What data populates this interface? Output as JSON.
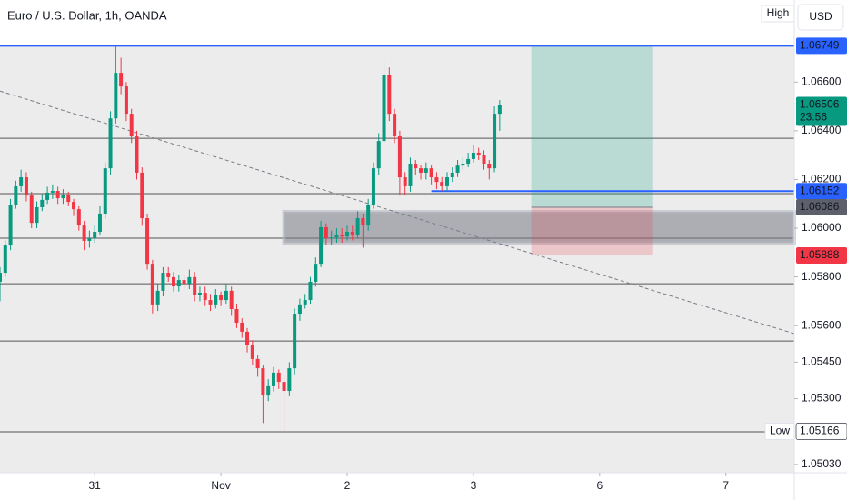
{
  "chart_data": {
    "type": "candlestick",
    "title": "Euro / U.S. Dollar, 1h, OANDA",
    "currency": "USD",
    "high_marker": "High",
    "xlim": [
      0,
      151
    ],
    "xticks": [
      {
        "value": 18,
        "label": "31"
      },
      {
        "value": 42,
        "label": "Nov"
      },
      {
        "value": 66,
        "label": "2"
      },
      {
        "value": 90,
        "label": "3"
      },
      {
        "value": 114,
        "label": "6"
      },
      {
        "value": 138,
        "label": "7"
      }
    ],
    "ylim": [
      1.04996,
      1.06937
    ],
    "yticks": [
      {
        "value": 1.066,
        "label": "1.06600"
      },
      {
        "value": 1.064,
        "label": "1.06400"
      },
      {
        "value": 1.062,
        "label": "1.06200"
      },
      {
        "value": 1.06,
        "label": "1.06000"
      },
      {
        "value": 1.058,
        "label": "1.05800"
      },
      {
        "value": 1.056,
        "label": "1.05600"
      },
      {
        "value": 1.0545,
        "label": "1.05450"
      },
      {
        "value": 1.053,
        "label": "1.05300"
      },
      {
        "value": 1.0503,
        "label": "1.05030"
      }
    ],
    "up_color": "#089981",
    "down_color": "#f23645",
    "open": [
      1.0578,
      1.05817,
      1.05929,
      1.06097,
      1.06172,
      1.06209,
      1.06134,
      1.06022,
      1.06086,
      1.06116,
      1.06146,
      1.06153,
      1.06123,
      1.06138,
      1.06108,
      1.06078,
      1.06011,
      1.05948,
      1.05959,
      1.05985,
      1.0606,
      1.06246,
      1.06451,
      1.06638,
      1.06582,
      1.0647,
      1.06377,
      1.06228,
      1.06041,
      1.05854,
      1.05687,
      1.05743,
      1.05817,
      1.05799,
      1.05761,
      1.05787,
      1.05772,
      1.05799,
      1.05724,
      1.05735,
      1.05705,
      1.05687,
      1.05724,
      1.05705,
      1.05743,
      1.05668,
      1.05612,
      1.05575,
      1.05519,
      1.05463,
      1.05425,
      1.05313,
      1.05351,
      1.05407,
      1.05369,
      1.05332,
      1.05425,
      1.05649,
      1.05687,
      1.05705,
      1.0578,
      1.05854,
      1.06004,
      1.05959,
      1.05962,
      1.05974,
      1.05966,
      1.05985,
      1.05974,
      1.06041,
      1.06011,
      1.06097,
      1.06246,
      1.06358,
      1.06631,
      1.0647,
      1.06377,
      1.06209,
      1.06172,
      1.06265,
      1.06246,
      1.06228,
      1.06246,
      1.06209,
      1.0619,
      1.06172,
      1.06209,
      1.06228,
      1.06257,
      1.06265,
      1.06284,
      1.0631,
      1.06302,
      1.06265,
      1.06246,
      1.0647
    ],
    "high": [
      1.0584,
      1.0595,
      1.0612,
      1.06195,
      1.0624,
      1.0623,
      1.0615,
      1.0611,
      1.0614,
      1.0617,
      1.0618,
      1.0617,
      1.0616,
      1.0615,
      1.0612,
      1.0609,
      1.0603,
      1.0599,
      1.0601,
      1.0609,
      1.0627,
      1.0648,
      1.06749,
      1.067,
      1.066,
      1.0649,
      1.064,
      1.0625,
      1.0606,
      1.0587,
      1.0577,
      1.0584,
      1.0584,
      1.0582,
      1.0581,
      1.0581,
      1.0583,
      1.0582,
      1.0576,
      1.0576,
      1.0573,
      1.0575,
      1.0574,
      1.0577,
      1.0576,
      1.0569,
      1.0563,
      1.0559,
      1.0554,
      1.0548,
      1.0544,
      1.0538,
      1.0543,
      1.0542,
      1.0539,
      1.0545,
      1.0567,
      1.0571,
      1.0573,
      1.058,
      1.0588,
      1.0603,
      1.0602,
      1.0599,
      1.06,
      1.06,
      1.0601,
      1.0601,
      1.0607,
      1.0606,
      1.0612,
      1.0627,
      1.0639,
      1.06688,
      1.0666,
      1.0649,
      1.064,
      1.0623,
      1.0629,
      1.0628,
      1.0626,
      1.0627,
      1.0626,
      1.0623,
      1.0621,
      1.0623,
      1.0625,
      1.0628,
      1.0629,
      1.0631,
      1.0634,
      1.0633,
      1.0632,
      1.0628,
      1.065,
      1.06526
    ],
    "low": [
      1.057,
      1.058,
      1.0591,
      1.0608,
      1.0615,
      1.0611,
      1.06,
      1.06,
      1.0607,
      1.061,
      1.0612,
      1.061,
      1.061,
      1.0609,
      1.0605,
      1.0599,
      1.0591,
      1.0592,
      1.0594,
      1.0597,
      1.0604,
      1.0622,
      1.0643,
      1.0655,
      1.0644,
      1.0635,
      1.062,
      1.0601,
      1.0583,
      1.0565,
      1.0566,
      1.0572,
      1.0578,
      1.0574,
      1.0574,
      1.0575,
      1.0575,
      1.057,
      1.057,
      1.0568,
      1.0566,
      1.0567,
      1.0568,
      1.0569,
      1.0564,
      1.0559,
      1.0555,
      1.0549,
      1.0544,
      1.0539,
      1.052,
      1.0529,
      1.0533,
      1.0534,
      1.05166,
      1.0531,
      1.054,
      1.0562,
      1.0567,
      1.0569,
      1.0576,
      1.0584,
      1.0593,
      1.0593,
      1.0594,
      1.0594,
      1.0595,
      1.0595,
      1.0596,
      1.0592,
      1.0599,
      1.0608,
      1.0622,
      1.0634,
      1.0644,
      1.0635,
      1.06134,
      1.06134,
      1.0615,
      1.0622,
      1.062,
      1.062,
      1.0618,
      1.0616,
      1.06152,
      1.06152,
      1.0619,
      1.0621,
      1.0624,
      1.0625,
      1.0627,
      1.0628,
      1.0624,
      1.062,
      1.0623,
      1.064
    ],
    "close": [
      1.05817,
      1.05929,
      1.06097,
      1.06172,
      1.06209,
      1.06134,
      1.06022,
      1.06086,
      1.06116,
      1.06146,
      1.06153,
      1.06123,
      1.06138,
      1.06108,
      1.06078,
      1.06011,
      1.05948,
      1.05959,
      1.05985,
      1.0606,
      1.06246,
      1.06451,
      1.06638,
      1.06582,
      1.0647,
      1.06377,
      1.06228,
      1.06041,
      1.05854,
      1.05687,
      1.05743,
      1.05817,
      1.05799,
      1.05761,
      1.05787,
      1.05772,
      1.05799,
      1.05724,
      1.05735,
      1.05705,
      1.05687,
      1.05724,
      1.05705,
      1.05743,
      1.05668,
      1.05612,
      1.05575,
      1.05519,
      1.05463,
      1.05425,
      1.05313,
      1.05351,
      1.05407,
      1.05369,
      1.05332,
      1.05425,
      1.05649,
      1.05687,
      1.05705,
      1.0578,
      1.05854,
      1.06004,
      1.05959,
      1.05962,
      1.05974,
      1.05966,
      1.05985,
      1.05974,
      1.06041,
      1.06011,
      1.06097,
      1.06246,
      1.06358,
      1.06631,
      1.0647,
      1.06377,
      1.06209,
      1.06172,
      1.06265,
      1.06246,
      1.06228,
      1.06246,
      1.06209,
      1.0619,
      1.06172,
      1.06209,
      1.06228,
      1.06257,
      1.06265,
      1.06284,
      1.0631,
      1.06302,
      1.06265,
      1.06246,
      1.0647,
      1.06506
    ],
    "levels": [
      1.06369,
      1.06142,
      1.05959,
      1.05772,
      1.05537,
      1.05164
    ],
    "level_color": "#555555",
    "blue_lines": [
      {
        "value": 1.06749,
        "from": 0
      },
      {
        "value": 1.06152,
        "from": 82
      }
    ],
    "blue_color": "#2962ff",
    "zone": {
      "top": 1.06067,
      "bottom": 1.0594,
      "from": 54
    },
    "position": {
      "from": 101,
      "to": 124,
      "target": 1.06749,
      "entry": 1.06086,
      "stop": 1.05888
    },
    "trendline": {
      "x": [
        0,
        151
      ],
      "y": [
        1.06563,
        1.05567
      ]
    },
    "last_price": 1.06506,
    "price_tags": [
      {
        "value": 1.06749,
        "label": "1.06749",
        "color": "#2962ff"
      },
      {
        "value": 1.06506,
        "label": "1.06506",
        "sub": "23:56",
        "color": "#089981"
      },
      {
        "value": 1.06152,
        "label": "1.06152",
        "color": "#2962ff"
      },
      {
        "value": 1.06086,
        "label": "1.06086",
        "color": "#5d606b"
      },
      {
        "value": 1.05888,
        "label": "1.05888",
        "color": "#f23645"
      },
      {
        "value": 1.05166,
        "label": "1.05166",
        "note": "Low",
        "color": "#ffffff"
      }
    ]
  }
}
